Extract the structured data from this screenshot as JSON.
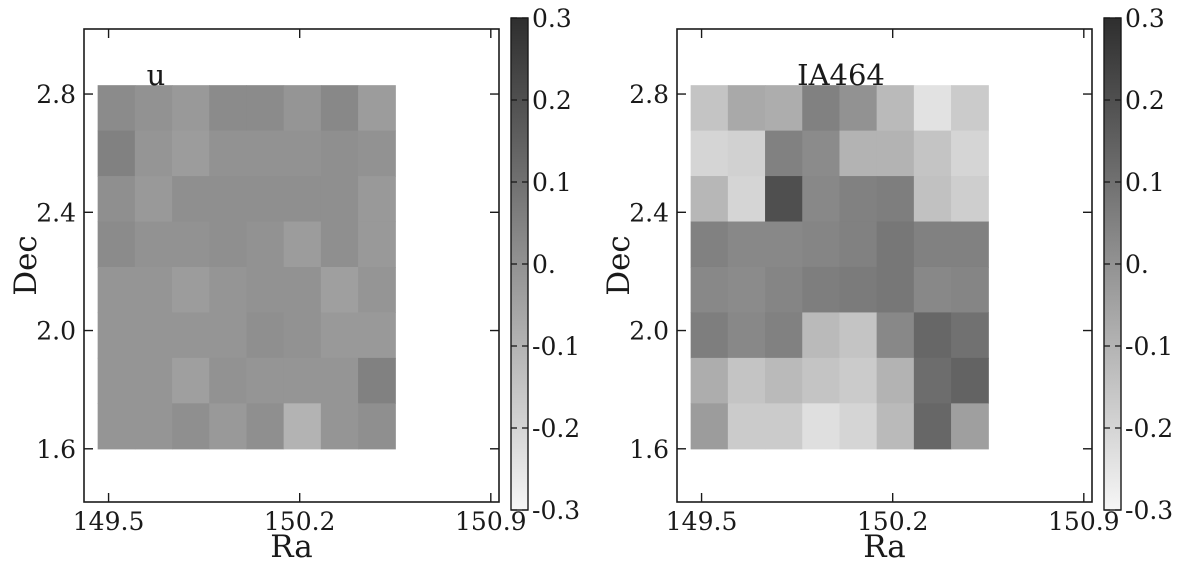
{
  "chart_data": [
    {
      "type": "heatmap",
      "title": "u",
      "xlabel": "Ra",
      "ylabel": "Dec",
      "x_ticks": [
        "149.5",
        "150.2",
        "150.9"
      ],
      "y_ticks": [
        "1.6",
        "2.0",
        "2.4",
        "2.8"
      ],
      "x_tick_values": [
        149.5,
        150.2,
        150.9
      ],
      "y_tick_values": [
        1.6,
        2.0,
        2.4,
        2.8
      ],
      "xlim": [
        149.41,
        150.93
      ],
      "ylim": [
        1.42,
        3.02
      ],
      "grid_x_range": [
        149.46,
        150.55
      ],
      "grid_y_range": [
        1.6,
        2.83
      ],
      "rows_top_to_bottom": [
        [
          0.02,
          0.0,
          -0.02,
          0.02,
          0.02,
          -0.01,
          0.03,
          -0.03
        ],
        [
          0.05,
          -0.01,
          -0.03,
          0.0,
          0.0,
          0.0,
          0.01,
          0.0
        ],
        [
          0.01,
          -0.02,
          0.01,
          0.01,
          0.01,
          0.01,
          0.01,
          -0.02
        ],
        [
          0.02,
          0.0,
          0.0,
          0.01,
          0.0,
          -0.03,
          0.01,
          -0.02
        ],
        [
          -0.01,
          -0.01,
          -0.03,
          -0.01,
          0.0,
          0.0,
          -0.04,
          -0.01
        ],
        [
          -0.01,
          -0.01,
          -0.01,
          -0.01,
          0.01,
          0.0,
          -0.02,
          -0.02
        ],
        [
          -0.01,
          -0.01,
          -0.04,
          0.0,
          -0.01,
          -0.01,
          -0.01,
          0.05
        ],
        [
          -0.01,
          -0.01,
          0.01,
          -0.02,
          0.01,
          -0.1,
          -0.01,
          0.01
        ]
      ],
      "colorbar": {
        "ticks": [
          "0.3",
          "0.2",
          "0.1",
          "0.",
          "-0.1",
          "-0.2",
          "-0.3"
        ],
        "tick_values": [
          0.3,
          0.2,
          0.1,
          0.0,
          -0.1,
          -0.2,
          -0.3
        ],
        "range": [
          -0.3,
          0.3
        ],
        "color_low": "#f6f6f6",
        "color_high": "#2e2e2e"
      },
      "grid": false
    },
    {
      "type": "heatmap",
      "title": "IA464",
      "xlabel": "Ra",
      "ylabel": "Dec",
      "x_ticks": [
        "149.5",
        "150.2",
        "150.9"
      ],
      "y_ticks": [
        "1.6",
        "2.0",
        "2.4",
        "2.8"
      ],
      "x_tick_values": [
        149.5,
        150.2,
        150.9
      ],
      "y_tick_values": [
        1.6,
        2.0,
        2.4,
        2.8
      ],
      "xlim": [
        149.41,
        150.93
      ],
      "ylim": [
        1.42,
        3.02
      ],
      "grid_x_range": [
        149.46,
        150.55
      ],
      "grid_y_range": [
        1.6,
        2.83
      ],
      "rows_top_to_bottom": [
        [
          -0.15,
          -0.07,
          -0.08,
          0.05,
          0.0,
          -0.12,
          -0.24,
          -0.17
        ],
        [
          -0.2,
          -0.19,
          0.05,
          0.02,
          -0.1,
          -0.1,
          -0.15,
          -0.2
        ],
        [
          -0.11,
          -0.2,
          0.2,
          0.03,
          0.05,
          0.06,
          -0.14,
          -0.18
        ],
        [
          0.05,
          0.03,
          0.03,
          0.04,
          0.05,
          0.08,
          0.05,
          0.05
        ],
        [
          0.03,
          0.02,
          0.04,
          0.06,
          0.07,
          0.08,
          0.03,
          0.04
        ],
        [
          0.06,
          0.03,
          0.05,
          -0.12,
          -0.15,
          0.03,
          0.13,
          0.1
        ],
        [
          -0.08,
          -0.15,
          -0.12,
          -0.15,
          -0.17,
          -0.1,
          0.11,
          0.14
        ],
        [
          -0.03,
          -0.17,
          -0.17,
          -0.23,
          -0.2,
          -0.12,
          0.13,
          -0.04
        ]
      ],
      "colorbar": {
        "ticks": [
          "0.3",
          "0.2",
          "0.1",
          "0.",
          "-0.1",
          "-0.2",
          "-0.3"
        ],
        "tick_values": [
          0.3,
          0.2,
          0.1,
          0.0,
          -0.1,
          -0.2,
          -0.3
        ],
        "range": [
          -0.3,
          0.3
        ],
        "color_low": "#f6f6f6",
        "color_high": "#2e2e2e"
      },
      "grid": false
    }
  ]
}
